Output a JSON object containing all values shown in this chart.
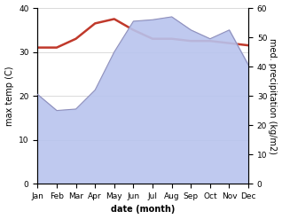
{
  "months": [
    "Jan",
    "Feb",
    "Mar",
    "Apr",
    "May",
    "Jun",
    "Jul",
    "Aug",
    "Sep",
    "Oct",
    "Nov",
    "Dec"
  ],
  "temp_max": [
    31.0,
    31.0,
    33.0,
    36.5,
    37.5,
    35.0,
    33.0,
    33.0,
    32.5,
    32.5,
    32.0,
    31.5
  ],
  "precip": [
    30.5,
    25.0,
    25.5,
    32.0,
    45.0,
    55.5,
    56.0,
    57.0,
    52.5,
    49.5,
    52.5,
    40.5
  ],
  "temp_line_color": "#c0392b",
  "precip_fill_color": "#b8c4ee",
  "precip_line_color": "#9090bb",
  "background_color": "#ffffff",
  "ylabel_left": "max temp (C)",
  "ylabel_right": "med. precipitation (kg/m2)",
  "xlabel": "date (month)",
  "ylim_left": [
    0,
    40
  ],
  "ylim_right": [
    0,
    60
  ],
  "label_fontsize": 7,
  "tick_fontsize": 6.5
}
